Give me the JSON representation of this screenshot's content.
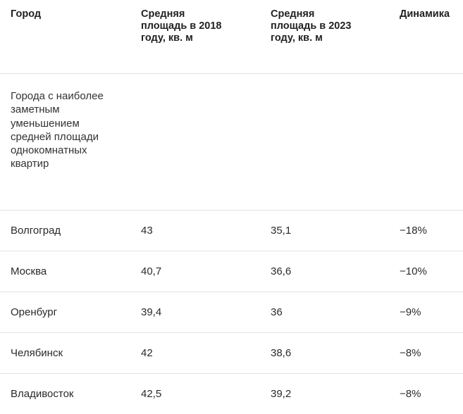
{
  "table": {
    "headers": [
      "Город",
      "Средняя площадь в 2018 году, кв. м",
      "Средняя площадь в 2023 году, кв. м",
      "Динамика"
    ],
    "section_label": "Города с наиболее заметным уменьшением средней площади однокомнатных квартир",
    "rows": [
      [
        "Волгоград",
        "43",
        "35,1",
        "−18%"
      ],
      [
        "Москва",
        "40,7",
        "36,6",
        "−10%"
      ],
      [
        "Оренбург",
        "39,4",
        "36",
        "−9%"
      ],
      [
        "Челябинск",
        "42",
        "38,6",
        "−8%"
      ],
      [
        "Владивосток",
        "42,5",
        "39,2",
        "−8%"
      ]
    ]
  }
}
